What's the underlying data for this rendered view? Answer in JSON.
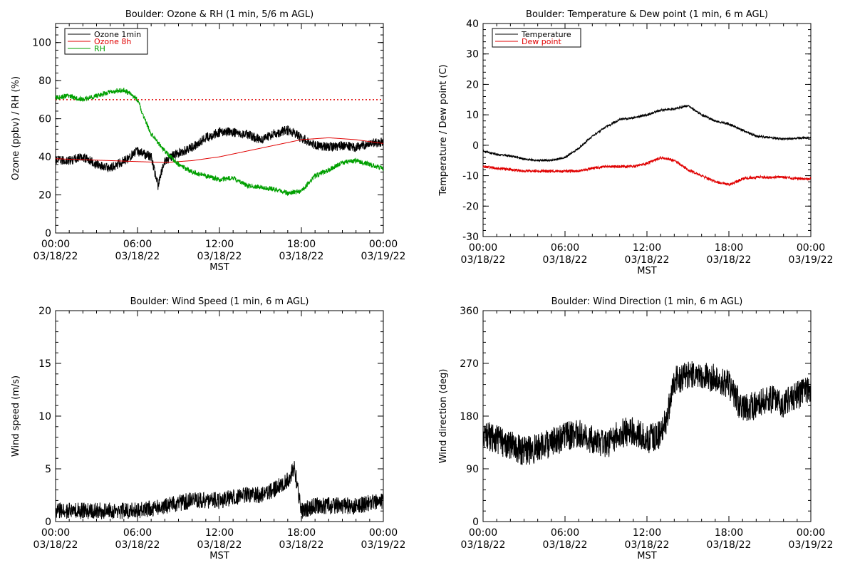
{
  "chart_data": [
    {
      "type": "line",
      "title": "Boulder: Ozone & RH (1 min, 5/6 m AGL)",
      "xlabel": "MST",
      "ylabel": "Ozone (ppbv) / RH (%)",
      "xlim": [
        "2022-03-18 00:00",
        "2022-03-19 00:00"
      ],
      "ylim": [
        0,
        110
      ],
      "yticks": [
        0,
        20,
        40,
        60,
        80,
        100
      ],
      "xtick_labels": [
        [
          "00:00",
          "03/18/22"
        ],
        [
          "06:00",
          "03/18/22"
        ],
        [
          "12:00",
          "03/18/22"
        ],
        [
          "18:00",
          "03/18/22"
        ],
        [
          "00:00",
          "03/19/22"
        ]
      ],
      "legend": "top-left",
      "reference_lines": [
        {
          "y": 70,
          "color": "#e00000",
          "style": "dotted"
        }
      ],
      "series": [
        {
          "name": "Ozone 1min",
          "color": "#000000",
          "noise": 2.5,
          "x": [
            "2022-03-18 00:00",
            "2022-03-18 01:00",
            "2022-03-18 02:00",
            "2022-03-18 03:00",
            "2022-03-18 04:00",
            "2022-03-18 05:00",
            "2022-03-18 06:00",
            "2022-03-18 07:00",
            "2022-03-18 07:30",
            "2022-03-18 08:00",
            "2022-03-18 09:00",
            "2022-03-18 10:00",
            "2022-03-18 11:00",
            "2022-03-18 12:00",
            "2022-03-18 13:00",
            "2022-03-18 14:00",
            "2022-03-18 15:00",
            "2022-03-18 16:00",
            "2022-03-18 17:00",
            "2022-03-18 18:00",
            "2022-03-18 19:00",
            "2022-03-18 20:00",
            "2022-03-18 21:00",
            "2022-03-18 22:00",
            "2022-03-18 23:00",
            "2022-03-19 00:00"
          ],
          "y": [
            38,
            38,
            40,
            36,
            34,
            38,
            43,
            40,
            25,
            38,
            42,
            45,
            50,
            53,
            53,
            52,
            49,
            52,
            54,
            50,
            46,
            45,
            46,
            45,
            47,
            48
          ]
        },
        {
          "name": "Ozone 8h",
          "color": "#e00000",
          "noise": 0,
          "x": [
            "2022-03-18 00:00",
            "2022-03-18 02:00",
            "2022-03-18 04:00",
            "2022-03-18 06:00",
            "2022-03-18 08:00",
            "2022-03-18 10:00",
            "2022-03-18 12:00",
            "2022-03-18 14:00",
            "2022-03-18 16:00",
            "2022-03-18 18:00",
            "2022-03-18 20:00",
            "2022-03-18 22:00",
            "2022-03-19 00:00"
          ],
          "y": [
            39,
            38.5,
            38,
            37.5,
            37,
            38,
            40,
            43,
            46,
            49,
            50,
            49,
            47
          ]
        },
        {
          "name": "RH",
          "color": "#00a000",
          "noise": 1.3,
          "x": [
            "2022-03-18 00:00",
            "2022-03-18 01:00",
            "2022-03-18 02:00",
            "2022-03-18 03:00",
            "2022-03-18 04:00",
            "2022-03-18 05:00",
            "2022-03-18 05:30",
            "2022-03-18 06:00",
            "2022-03-18 06:30",
            "2022-03-18 07:00",
            "2022-03-18 08:00",
            "2022-03-18 09:00",
            "2022-03-18 10:00",
            "2022-03-18 11:00",
            "2022-03-18 12:00",
            "2022-03-18 13:00",
            "2022-03-18 14:00",
            "2022-03-18 15:00",
            "2022-03-18 16:00",
            "2022-03-18 17:00",
            "2022-03-18 18:00",
            "2022-03-18 19:00",
            "2022-03-18 20:00",
            "2022-03-18 21:00",
            "2022-03-18 22:00",
            "2022-03-18 23:00",
            "2022-03-19 00:00"
          ],
          "y": [
            71,
            72,
            70,
            72,
            74,
            75,
            73,
            70,
            60,
            52,
            43,
            36,
            32,
            30,
            28,
            29,
            25,
            24,
            23,
            21,
            22,
            30,
            33,
            37,
            38,
            36,
            34
          ]
        }
      ]
    },
    {
      "type": "line",
      "title": "Boulder: Temperature & Dew point (1 min, 6 m AGL)",
      "xlabel": "MST",
      "ylabel": "Temperature / Dew point (C)",
      "xlim": [
        "2022-03-18 00:00",
        "2022-03-19 00:00"
      ],
      "ylim": [
        -30,
        40
      ],
      "yticks": [
        -30,
        -20,
        -10,
        0,
        10,
        20,
        30,
        40
      ],
      "xtick_labels": [
        [
          "00:00",
          "03/18/22"
        ],
        [
          "06:00",
          "03/18/22"
        ],
        [
          "12:00",
          "03/18/22"
        ],
        [
          "18:00",
          "03/18/22"
        ],
        [
          "00:00",
          "03/19/22"
        ]
      ],
      "legend": "top-left",
      "series": [
        {
          "name": "Temperature",
          "color": "#000000",
          "noise": 0.35,
          "x": [
            "2022-03-18 00:00",
            "2022-03-18 01:00",
            "2022-03-18 02:00",
            "2022-03-18 03:00",
            "2022-03-18 04:00",
            "2022-03-18 05:00",
            "2022-03-18 06:00",
            "2022-03-18 07:00",
            "2022-03-18 08:00",
            "2022-03-18 09:00",
            "2022-03-18 10:00",
            "2022-03-18 11:00",
            "2022-03-18 12:00",
            "2022-03-18 13:00",
            "2022-03-18 14:00",
            "2022-03-18 15:00",
            "2022-03-18 16:00",
            "2022-03-18 17:00",
            "2022-03-18 18:00",
            "2022-03-18 19:00",
            "2022-03-18 20:00",
            "2022-03-18 21:00",
            "2022-03-18 22:00",
            "2022-03-18 23:00",
            "2022-03-19 00:00"
          ],
          "y": [
            -2,
            -3,
            -3.5,
            -4.5,
            -5,
            -5,
            -4,
            -1,
            3,
            6,
            8.5,
            9,
            10,
            11.5,
            12,
            13,
            10,
            8,
            7,
            5,
            3,
            2.5,
            2,
            2.3,
            2.5
          ]
        },
        {
          "name": "Dew point",
          "color": "#e00000",
          "noise": 0.45,
          "x": [
            "2022-03-18 00:00",
            "2022-03-18 01:00",
            "2022-03-18 02:00",
            "2022-03-18 03:00",
            "2022-03-18 04:00",
            "2022-03-18 05:00",
            "2022-03-18 06:00",
            "2022-03-18 07:00",
            "2022-03-18 08:00",
            "2022-03-18 09:00",
            "2022-03-18 10:00",
            "2022-03-18 11:00",
            "2022-03-18 12:00",
            "2022-03-18 13:00",
            "2022-03-18 14:00",
            "2022-03-18 15:00",
            "2022-03-18 16:00",
            "2022-03-18 17:00",
            "2022-03-18 18:00",
            "2022-03-18 19:00",
            "2022-03-18 20:00",
            "2022-03-18 21:00",
            "2022-03-18 22:00",
            "2022-03-18 23:00",
            "2022-03-19 00:00"
          ],
          "y": [
            -7,
            -7.5,
            -8,
            -8.5,
            -8.5,
            -8.5,
            -8.5,
            -8.5,
            -7.5,
            -7,
            -7,
            -7,
            -6,
            -4,
            -5,
            -8,
            -10,
            -12,
            -13,
            -11,
            -10.5,
            -10.5,
            -10.5,
            -11,
            -11
          ]
        }
      ]
    },
    {
      "type": "line",
      "title": "Boulder: Wind Speed (1 min, 6 m AGL)",
      "xlabel": "MST",
      "ylabel": "Wind speed (m/s)",
      "xlim": [
        "2022-03-18 00:00",
        "2022-03-19 00:00"
      ],
      "ylim": [
        0,
        20
      ],
      "yticks": [
        0,
        5,
        10,
        15,
        20
      ],
      "xtick_labels": [
        [
          "00:00",
          "03/18/22"
        ],
        [
          "06:00",
          "03/18/22"
        ],
        [
          "12:00",
          "03/18/22"
        ],
        [
          "18:00",
          "03/18/22"
        ],
        [
          "00:00",
          "03/19/22"
        ]
      ],
      "series": [
        {
          "name": "",
          "color": "#000000",
          "noise": 0.8,
          "floor": 0,
          "x": [
            "2022-03-18 00:00",
            "2022-03-18 02:00",
            "2022-03-18 04:00",
            "2022-03-18 06:00",
            "2022-03-18 08:00",
            "2022-03-18 10:00",
            "2022-03-18 12:00",
            "2022-03-18 14:00",
            "2022-03-18 15:00",
            "2022-03-18 16:00",
            "2022-03-18 17:00",
            "2022-03-18 17:30",
            "2022-03-18 18:00",
            "2022-03-18 19:00",
            "2022-03-18 20:00",
            "2022-03-18 22:00",
            "2022-03-19 00:00"
          ],
          "y": [
            1,
            1,
            1,
            1,
            1.5,
            2,
            2,
            2.5,
            2.5,
            3,
            4,
            5,
            1,
            1.5,
            1.5,
            1.5,
            2
          ]
        }
      ]
    },
    {
      "type": "line",
      "title": "Boulder: Wind Direction (1 min, 6 m AGL)",
      "xlabel": "MST",
      "ylabel": "Wind direction (deg)",
      "xlim": [
        "2022-03-18 00:00",
        "2022-03-19 00:00"
      ],
      "ylim": [
        0,
        360
      ],
      "yticks": [
        0,
        90,
        180,
        270,
        360
      ],
      "xtick_labels": [
        [
          "00:00",
          "03/18/22"
        ],
        [
          "06:00",
          "03/18/22"
        ],
        [
          "12:00",
          "03/18/22"
        ],
        [
          "18:00",
          "03/18/22"
        ],
        [
          "00:00",
          "03/19/22"
        ]
      ],
      "series": [
        {
          "name": "",
          "color": "#000000",
          "noise": 25,
          "x": [
            "2022-03-18 00:00",
            "2022-03-18 01:00",
            "2022-03-18 02:00",
            "2022-03-18 03:00",
            "2022-03-18 04:00",
            "2022-03-18 05:00",
            "2022-03-18 06:00",
            "2022-03-18 07:00",
            "2022-03-18 08:00",
            "2022-03-18 09:00",
            "2022-03-18 10:00",
            "2022-03-18 11:00",
            "2022-03-18 12:00",
            "2022-03-18 13:00",
            "2022-03-18 13:30",
            "2022-03-18 14:00",
            "2022-03-18 15:00",
            "2022-03-18 16:00",
            "2022-03-18 17:00",
            "2022-03-18 18:00",
            "2022-03-18 19:00",
            "2022-03-18 20:00",
            "2022-03-18 21:00",
            "2022-03-18 22:00",
            "2022-03-18 23:00",
            "2022-03-19 00:00"
          ],
          "y": [
            150,
            140,
            130,
            120,
            125,
            135,
            145,
            150,
            140,
            130,
            150,
            155,
            140,
            150,
            180,
            240,
            250,
            250,
            245,
            235,
            190,
            200,
            210,
            200,
            215,
            225
          ]
        }
      ]
    }
  ]
}
